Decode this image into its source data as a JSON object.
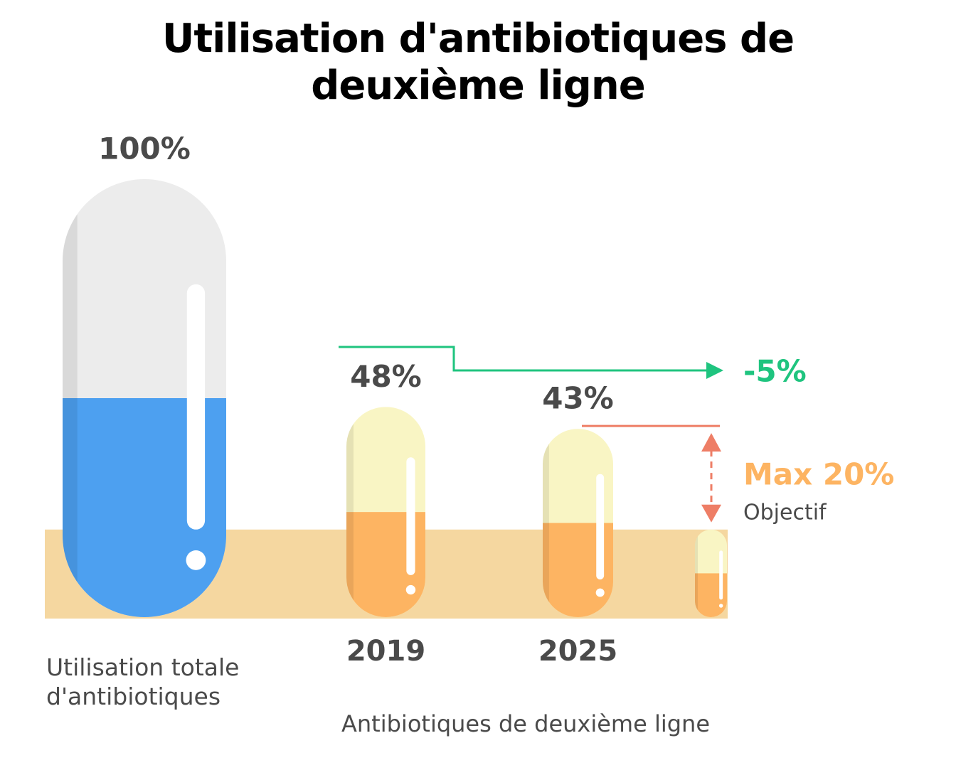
{
  "chart_data": {
    "type": "pill",
    "title": "Utilisation d'antibiotiques de deuxième ligne",
    "categories": [
      null,
      "2019",
      "2025",
      null
    ],
    "values": [
      100,
      48,
      43,
      20
    ],
    "value_labels": [
      "100%",
      "48%",
      "43%",
      "Max 20%"
    ],
    "colors": [
      "#4da0f0",
      "#fdb462",
      "#fdb462",
      "#fdb462"
    ],
    "ylim": [
      0,
      100
    ],
    "target_label": "Objectif",
    "change": {
      "value": -5,
      "label": "-5%"
    },
    "group_labels": [
      "Utilisation totale d'antibiotiques",
      "Antibiotiques de deuxième ligne"
    ]
  }
}
